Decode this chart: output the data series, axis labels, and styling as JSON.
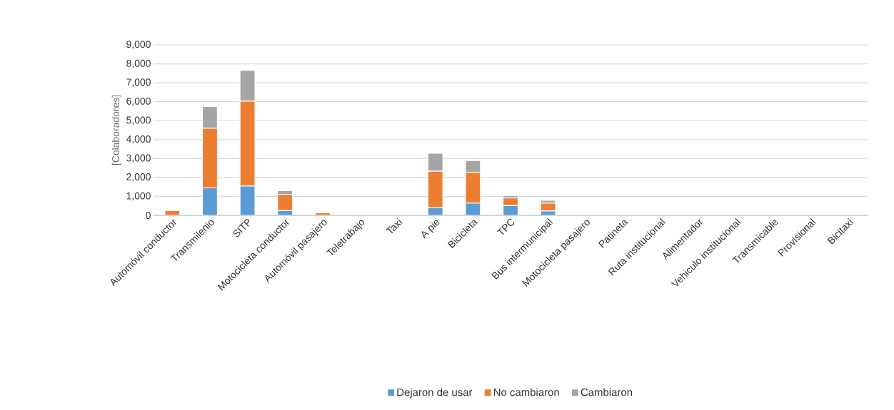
{
  "chart_data": {
    "type": "bar",
    "stacked": true,
    "ylabel": "[Colaboradores]",
    "categories": [
      "Automóvil conductor",
      "Transmilenio",
      "SITP",
      "Motocicleta conductor",
      "Automóvil pasajero",
      "Teletrabajo",
      "Taxi",
      "A pie",
      "Bicicleta",
      "TPC",
      "Bus intermunicipal",
      "Motocicleta pasajero",
      "Patineta",
      "Ruta institucional",
      "Alimentador",
      "Vehiculo institucional",
      "Transmicable",
      "Provisional",
      "Bicitaxi"
    ],
    "series": [
      {
        "name": "Dejaron de usar",
        "color": "#5b9bd5",
        "values": [
          null,
          1450,
          1550,
          250,
          null,
          0,
          0,
          400,
          640,
          510,
          230,
          0,
          0,
          0,
          0,
          0,
          0,
          0,
          0
        ]
      },
      {
        "name": "No cambiaron",
        "color": "#ed7d31",
        "values": [
          250,
          3150,
          4480,
          860,
          140,
          0,
          0,
          1930,
          1630,
          410,
          410,
          0,
          0,
          0,
          0,
          0,
          0,
          0,
          0
        ]
      },
      {
        "name": "Cambiaron",
        "color": "#a5a5a5",
        "values": [
          0,
          1150,
          1630,
          190,
          0,
          0,
          0,
          950,
          620,
          120,
          150,
          0,
          0,
          0,
          0,
          0,
          0,
          0,
          0
        ]
      }
    ],
    "ylim": [
      0,
      9000
    ],
    "yticks": [
      {
        "value": 0,
        "label": "0"
      },
      {
        "value": 1000,
        "label": "1,000"
      },
      {
        "value": 2000,
        "label": "2,000"
      },
      {
        "value": 3000,
        "label": "3,000"
      },
      {
        "value": 4000,
        "label": "4,000"
      },
      {
        "value": 5000,
        "label": "5,000"
      },
      {
        "value": 6000,
        "label": "6,000"
      },
      {
        "value": 7000,
        "label": "7,000"
      },
      {
        "value": 8000,
        "label": "8,000"
      },
      {
        "value": 9000,
        "label": "9,000"
      }
    ],
    "grid": "y",
    "legend": "bottom"
  }
}
